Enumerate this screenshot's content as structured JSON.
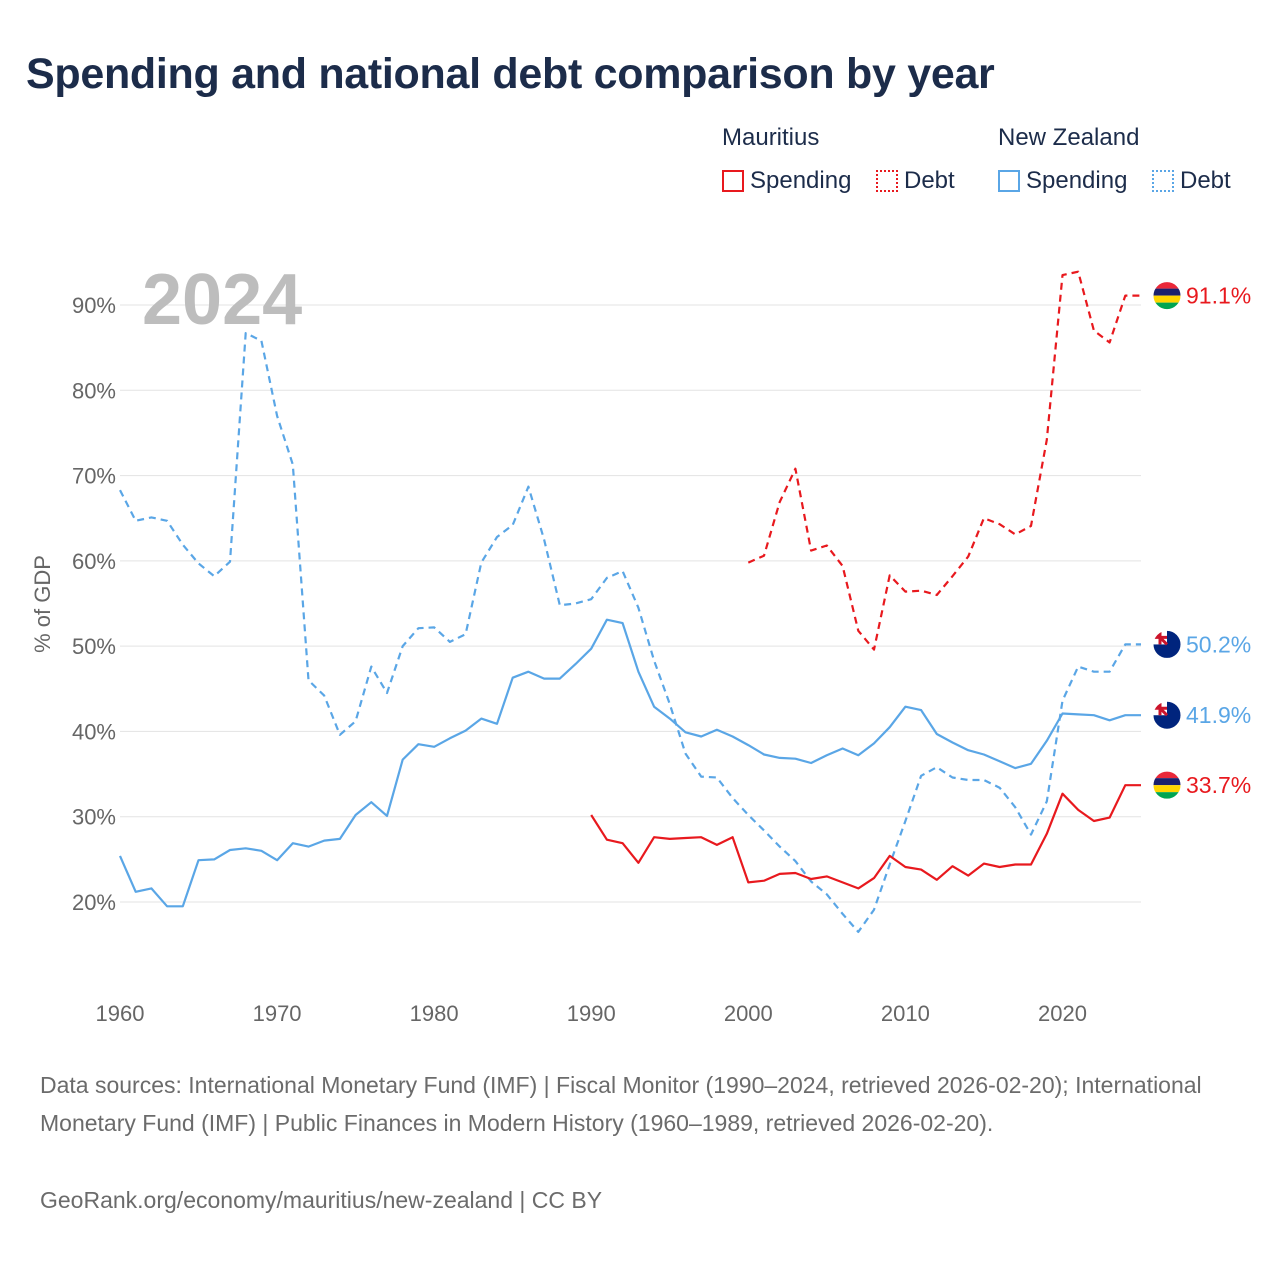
{
  "title": "Spending and national debt comparison by year",
  "legend": {
    "groups": [
      {
        "name": "Mauritius",
        "color": "#e8191e",
        "items": [
          "Spending",
          "Debt"
        ]
      },
      {
        "name": "New Zealand",
        "color": "#5aa6e6",
        "items": [
          "Spending",
          "Debt"
        ]
      }
    ]
  },
  "chart_data": {
    "type": "line",
    "title": "Spending and national debt comparison by year",
    "year_label": "2024",
    "ylabel": "% of GDP",
    "xlim": [
      1960,
      2025
    ],
    "ylim": [
      10,
      97
    ],
    "yticks": [
      20,
      30,
      40,
      50,
      60,
      70,
      80,
      90
    ],
    "ytick_labels": [
      "20%",
      "30%",
      "40%",
      "50%",
      "60%",
      "70%",
      "80%",
      "90%"
    ],
    "xticks": [
      1960,
      1970,
      1980,
      1990,
      2000,
      2010,
      2020
    ],
    "xtick_labels": [
      "1960",
      "1970",
      "1980",
      "1990",
      "2000",
      "2010",
      "2020"
    ],
    "series": [
      {
        "name": "New Zealand Debt",
        "country": "New Zealand",
        "measure": "Debt",
        "color": "#5aa6e6",
        "dashed": true,
        "start_year": 1960,
        "values": [
          68.3,
          64.7,
          65.1,
          64.7,
          61.9,
          59.7,
          58.2,
          59.9,
          86.7,
          85.8,
          77.0,
          71.3,
          46.0,
          44.2,
          39.6,
          41.2,
          47.6,
          44.5,
          50.0,
          52.1,
          52.2,
          50.5,
          51.4,
          59.8,
          62.8,
          64.2,
          68.7,
          62.5,
          54.8,
          55.0,
          55.5,
          58.0,
          58.8,
          54.5,
          48.3,
          43.2,
          37.4,
          34.7,
          34.6,
          32.2,
          30.2,
          28.4,
          26.5,
          24.8,
          22.4,
          20.9,
          18.6,
          16.5,
          19.1,
          24.4,
          29.5,
          34.8,
          35.8,
          34.6,
          34.3,
          34.3,
          33.4,
          31.1,
          27.9,
          31.8,
          43.6,
          47.6,
          47.0,
          47.0,
          50.2
        ]
      },
      {
        "name": "New Zealand Spending",
        "country": "New Zealand",
        "measure": "Spending",
        "color": "#5aa6e6",
        "dashed": false,
        "start_year": 1960,
        "values": [
          25.4,
          21.2,
          21.6,
          19.5,
          19.5,
          24.9,
          25.0,
          26.1,
          26.3,
          26.0,
          24.9,
          26.9,
          26.5,
          27.2,
          27.4,
          30.2,
          31.7,
          30.1,
          36.7,
          38.5,
          38.2,
          39.2,
          40.1,
          41.5,
          40.9,
          46.3,
          47.0,
          46.2,
          46.2,
          47.9,
          49.7,
          53.1,
          52.7,
          47.0,
          42.9,
          41.5,
          39.9,
          39.4,
          40.2,
          39.4,
          38.4,
          37.3,
          36.9,
          36.8,
          36.3,
          37.2,
          38.0,
          37.2,
          38.6,
          40.5,
          42.9,
          42.5,
          39.7,
          38.7,
          37.8,
          37.3,
          36.5,
          35.7,
          36.2,
          38.9,
          42.1,
          42.0,
          41.9,
          41.3,
          41.9
        ]
      },
      {
        "name": "Mauritius Debt",
        "country": "Mauritius",
        "measure": "Debt",
        "color": "#e8191e",
        "dashed": true,
        "start_year": 2000,
        "values": [
          59.8,
          60.6,
          66.9,
          70.8,
          61.2,
          61.8,
          59.4,
          51.8,
          49.6,
          58.3,
          56.4,
          56.5,
          56.0,
          58.2,
          60.5,
          65.0,
          64.3,
          63.1,
          64.1,
          74.2,
          93.5,
          93.9,
          87.0,
          85.6,
          91.1
        ]
      },
      {
        "name": "Mauritius Spending",
        "country": "Mauritius",
        "measure": "Spending",
        "color": "#e8191e",
        "dashed": false,
        "start_year": 1990,
        "values": [
          30.2,
          27.3,
          26.9,
          24.6,
          27.6,
          27.4,
          27.5,
          27.6,
          26.7,
          27.6,
          22.3,
          22.5,
          23.3,
          23.4,
          22.7,
          23.0,
          22.3,
          21.6,
          22.8,
          25.4,
          24.1,
          23.8,
          22.6,
          24.2,
          23.1,
          24.5,
          24.1,
          24.4,
          24.4,
          28.0,
          32.7,
          30.8,
          29.5,
          29.9,
          33.7
        ]
      }
    ],
    "end_labels": [
      {
        "series": "Mauritius Debt",
        "value": 91.1,
        "label": "91.1%",
        "color": "#e8191e",
        "flag": "mauritius"
      },
      {
        "series": "New Zealand Debt",
        "value": 50.2,
        "label": "50.2%",
        "color": "#5aa6e6",
        "flag": "new-zealand"
      },
      {
        "series": "New Zealand Spending",
        "value": 41.9,
        "label": "41.9%",
        "color": "#5aa6e6",
        "flag": "new-zealand"
      },
      {
        "series": "Mauritius Spending",
        "value": 33.7,
        "label": "33.7%",
        "color": "#e8191e",
        "flag": "mauritius"
      }
    ]
  },
  "footer": {
    "sources": "Data sources: International Monetary Fund (IMF) | Fiscal Monitor (1990–2024, retrieved 2026-02-20); International Monetary Fund (IMF) | Public Finances in Modern History (1960–1989, retrieved 2026-02-20).",
    "credit": "GeoRank.org/economy/mauritius/new-zealand | CC BY"
  }
}
